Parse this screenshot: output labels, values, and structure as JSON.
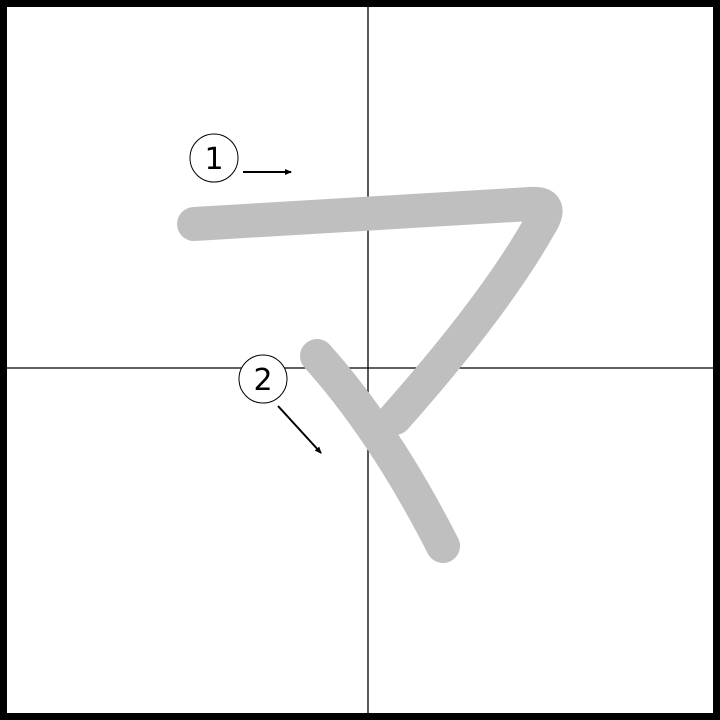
{
  "character": {
    "strokes": [
      {
        "order_label": "1",
        "arrow_direction": "right"
      },
      {
        "order_label": "2",
        "arrow_direction": "down-right"
      }
    ]
  },
  "colors": {
    "stroke": "#bfbfbf",
    "guide_lines": "#000000",
    "frame": "#000000",
    "background": "#ffffff"
  }
}
